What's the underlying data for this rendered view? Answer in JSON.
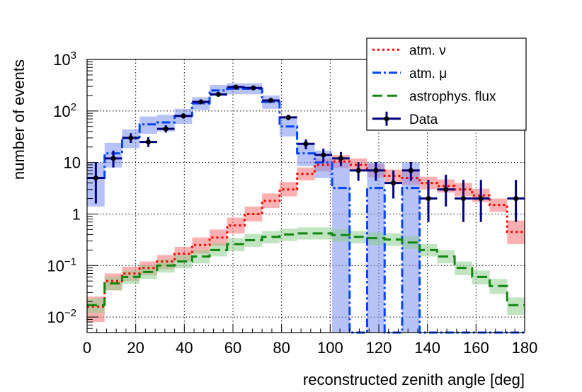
{
  "chart_data": {
    "type": "histogram",
    "xlabel": "reconstructed zenith angle [deg]",
    "ylabel": "number of events",
    "x_range": [
      0,
      180
    ],
    "y_range": [
      0.005,
      1000
    ],
    "y_scale": "log",
    "x_ticks": [
      0,
      20,
      40,
      60,
      80,
      100,
      120,
      140,
      160,
      180
    ],
    "x_tick_labels": [
      "0",
      "20",
      "40",
      "60",
      "80",
      "100",
      "120",
      "140",
      "160",
      "180"
    ],
    "y_ticks": [
      0.01,
      0.1,
      1,
      10,
      100,
      1000
    ],
    "y_tick_labels": [
      {
        "base": "10",
        "exp": "−2"
      },
      {
        "base": "10",
        "exp": "−1"
      },
      {
        "base": "1",
        "exp": ""
      },
      {
        "base": "10",
        "exp": ""
      },
      {
        "base": "10",
        "exp": "2"
      },
      {
        "base": "10",
        "exp": "3"
      }
    ],
    "grid": true,
    "legend_position": "top-right",
    "bin_edges": [
      0,
      7.2,
      14.4,
      21.6,
      28.8,
      36,
      43.2,
      50.4,
      57.6,
      64.8,
      72,
      79.2,
      86.4,
      93.6,
      100.8,
      108,
      115.2,
      122.4,
      129.6,
      136.8,
      144,
      151.2,
      158.4,
      165.6,
      172.8,
      180
    ],
    "series": [
      {
        "name": "atm. ν",
        "style": "dotted",
        "color": "#ff0000",
        "band_color": "#f87171",
        "values": [
          0.016,
          0.05,
          0.07,
          0.09,
          0.12,
          0.17,
          0.25,
          0.35,
          0.6,
          1.0,
          1.8,
          3.0,
          6.0,
          9.0,
          10.5,
          9.0,
          7.0,
          5.5,
          5.0,
          4.0,
          3.5,
          3.0,
          2.3,
          1.5,
          0.45
        ],
        "band_low": [
          0.008,
          0.033,
          0.05,
          0.065,
          0.085,
          0.12,
          0.17,
          0.24,
          0.42,
          0.72,
          1.3,
          2.2,
          4.5,
          6.7,
          7.8,
          6.7,
          5.2,
          4.1,
          3.7,
          3.0,
          2.6,
          2.2,
          1.7,
          1.1,
          0.26
        ],
        "band_high": [
          0.025,
          0.07,
          0.095,
          0.12,
          0.16,
          0.23,
          0.35,
          0.5,
          0.85,
          1.4,
          2.5,
          4.2,
          8.0,
          12.0,
          14.0,
          12.0,
          9.3,
          7.3,
          6.7,
          5.3,
          4.7,
          4.0,
          3.1,
          2.0,
          0.75
        ]
      },
      {
        "name": "atm. μ",
        "style": "dashdot",
        "color": "#0044ff",
        "band_color": "#7b8ff0",
        "values": [
          5.0,
          15.0,
          30.0,
          55.0,
          60.0,
          80.0,
          140.0,
          250.0,
          270.0,
          270.0,
          150.0,
          50.0,
          15.0,
          10.0,
          3.2,
          0.0,
          3.2,
          0.0,
          3.2,
          0.0,
          0.0,
          0.0,
          0.0,
          0.0,
          0.0
        ],
        "band_low": [
          1.4,
          8.0,
          19.0,
          36.0,
          40.0,
          56.0,
          105.0,
          195.0,
          210.0,
          210.0,
          110.0,
          32.0,
          8.5,
          5.0,
          0.005,
          0.0,
          0.005,
          0.0,
          0.005,
          0.0,
          0.0,
          0.0,
          0.0,
          0.0,
          0.0
        ],
        "band_high": [
          10.0,
          24.0,
          44.0,
          78.0,
          84.0,
          110.0,
          185.0,
          320.0,
          345.0,
          345.0,
          200.0,
          75.0,
          24.0,
          17.0,
          10.0,
          0.0,
          10.0,
          0.0,
          10.0,
          0.0,
          0.0,
          0.0,
          0.0,
          0.0,
          0.0
        ]
      },
      {
        "name": "astrophys. flux",
        "style": "dashed",
        "color": "#118811",
        "band_color": "#8fce8f",
        "values": [
          0.017,
          0.045,
          0.06,
          0.075,
          0.1,
          0.12,
          0.15,
          0.2,
          0.26,
          0.31,
          0.36,
          0.4,
          0.42,
          0.42,
          0.39,
          0.36,
          0.34,
          0.32,
          0.28,
          0.2,
          0.15,
          0.09,
          0.06,
          0.04,
          0.017
        ],
        "band_low": [
          0.012,
          0.033,
          0.044,
          0.055,
          0.073,
          0.088,
          0.11,
          0.15,
          0.19,
          0.23,
          0.27,
          0.3,
          0.32,
          0.32,
          0.29,
          0.27,
          0.25,
          0.24,
          0.21,
          0.15,
          0.11,
          0.065,
          0.043,
          0.028,
          0.011
        ],
        "band_high": [
          0.023,
          0.06,
          0.08,
          0.1,
          0.13,
          0.16,
          0.2,
          0.27,
          0.34,
          0.41,
          0.47,
          0.52,
          0.55,
          0.55,
          0.51,
          0.47,
          0.44,
          0.42,
          0.37,
          0.26,
          0.2,
          0.12,
          0.08,
          0.055,
          0.024
        ]
      }
    ],
    "data": {
      "name": "Data",
      "color": "#000080",
      "points": [
        {
          "x": 3.6,
          "y": 5,
          "err_low": 3.4,
          "err_high": 5
        },
        {
          "x": 10.8,
          "y": 12,
          "err_low": 4,
          "err_high": 5
        },
        {
          "x": 18.0,
          "y": 30,
          "err_low": 6,
          "err_high": 7
        },
        {
          "x": 25.2,
          "y": 25,
          "err_low": 5,
          "err_high": 6
        },
        {
          "x": 32.4,
          "y": 45,
          "err_low": 7,
          "err_high": 8
        },
        {
          "x": 39.6,
          "y": 80,
          "err_low": 9,
          "err_high": 10
        },
        {
          "x": 46.8,
          "y": 150,
          "err_low": 12,
          "err_high": 13
        },
        {
          "x": 54.0,
          "y": 210,
          "err_low": 15,
          "err_high": 15
        },
        {
          "x": 61.2,
          "y": 290,
          "err_low": 17,
          "err_high": 18
        },
        {
          "x": 68.4,
          "y": 280,
          "err_low": 17,
          "err_high": 17
        },
        {
          "x": 75.6,
          "y": 160,
          "err_low": 13,
          "err_high": 13
        },
        {
          "x": 82.8,
          "y": 75,
          "err_low": 9,
          "err_high": 9
        },
        {
          "x": 90.0,
          "y": 23,
          "err_low": 5,
          "err_high": 5
        },
        {
          "x": 97.2,
          "y": 14,
          "err_low": 4,
          "err_high": 4.5
        },
        {
          "x": 104.4,
          "y": 12,
          "err_low": 3.5,
          "err_high": 4
        },
        {
          "x": 111.6,
          "y": 7,
          "err_low": 2.6,
          "err_high": 3.2
        },
        {
          "x": 118.8,
          "y": 7,
          "err_low": 2.6,
          "err_high": 3.2
        },
        {
          "x": 126.0,
          "y": 4,
          "err_low": 2,
          "err_high": 3
        },
        {
          "x": 133.2,
          "y": 7,
          "err_low": 2.6,
          "err_high": 3.2
        },
        {
          "x": 140.4,
          "y": 2,
          "err_low": 1.3,
          "err_high": 2.6
        },
        {
          "x": 147.6,
          "y": 3,
          "err_low": 1.6,
          "err_high": 2.8
        },
        {
          "x": 154.8,
          "y": 2,
          "err_low": 1.3,
          "err_high": 2.6
        },
        {
          "x": 162.0,
          "y": 2,
          "err_low": 1.3,
          "err_high": 2.6
        },
        {
          "x": 169.2,
          "y": 0,
          "err_low": 0,
          "err_high": 0
        },
        {
          "x": 176.4,
          "y": 2,
          "err_low": 1.3,
          "err_high": 2.6
        }
      ]
    },
    "legend": [
      {
        "label": "atm. ν",
        "series": "atm. ν"
      },
      {
        "label": "atm. μ",
        "series": "atm. μ"
      },
      {
        "label": "astrophys. flux",
        "series": "astrophys. flux"
      },
      {
        "label": "Data",
        "series": "Data"
      }
    ]
  }
}
